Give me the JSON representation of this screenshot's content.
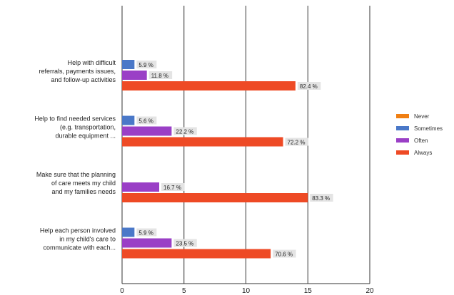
{
  "chart_data": {
    "type": "bar",
    "orientation": "horizontal",
    "categories": [
      [
        "Help with difficult",
        "referrals, payments issues,",
        "and follow-up activities"
      ],
      [
        "Help to find needed services",
        "(e.g. transportation,",
        "durable equipment ..."
      ],
      [
        "Make sure that the planning",
        "of care meets my child",
        "and my families needs"
      ],
      [
        "Help each person involved",
        "in my child's care to",
        "communicate with each..."
      ]
    ],
    "series": [
      {
        "name": "Never",
        "color": "#f07f12",
        "values": [
          null,
          null,
          null,
          null
        ],
        "labels": [
          null,
          null,
          null,
          null
        ]
      },
      {
        "name": "Sometimes",
        "color": "#4a78c8",
        "values": [
          1,
          1,
          null,
          1
        ],
        "labels": [
          "5.9 %",
          "5.6 %",
          null,
          "5.9 %"
        ]
      },
      {
        "name": "Often",
        "color": "#9a3fc6",
        "values": [
          2,
          4,
          3,
          4
        ],
        "labels": [
          "11.8 %",
          "22.2 %",
          "16.7 %",
          "23.5 %"
        ]
      },
      {
        "name": "Always",
        "color": "#ee4a25",
        "values": [
          14,
          13,
          15,
          12
        ],
        "labels": [
          "82.4 %",
          "72.2 %",
          "83.3 %",
          "70.6 %"
        ]
      }
    ],
    "xlim": [
      0,
      20
    ],
    "xticks": [
      0,
      5,
      10,
      15,
      20
    ],
    "grid": true,
    "legend_position": "right"
  }
}
